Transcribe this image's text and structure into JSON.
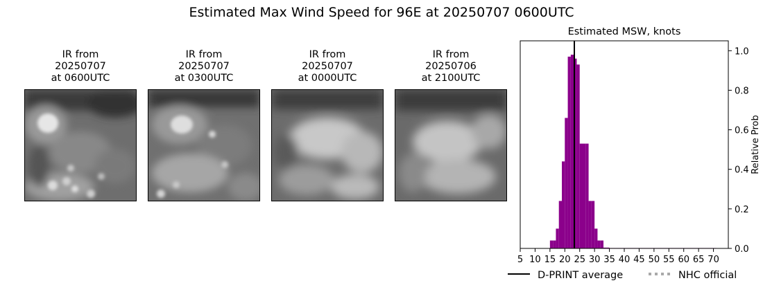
{
  "suptitle": "Estimated Max Wind Speed for 96E at 20250707 0600UTC",
  "ir_panels": [
    {
      "line1": "IR from",
      "line2": "20250707",
      "line3": "at 0600UTC"
    },
    {
      "line1": "IR from",
      "line2": "20250707",
      "line3": "at 0300UTC"
    },
    {
      "line1": "IR from",
      "line2": "20250707",
      "line3": "at 0000UTC"
    },
    {
      "line1": "IR from",
      "line2": "20250706",
      "line3": "at 2100UTC"
    }
  ],
  "chart_data": {
    "type": "bar",
    "title": "Estimated MSW, knots",
    "xlabel": "",
    "ylabel": "Relative Prob",
    "xlim": [
      5,
      75
    ],
    "ylim": [
      0,
      1.05
    ],
    "bin_width": 1,
    "bar_color": "#8b008b",
    "x_ticks": [
      5,
      10,
      15,
      20,
      25,
      30,
      35,
      40,
      45,
      50,
      55,
      60,
      65,
      70
    ],
    "y_ticks": [
      0.0,
      0.2,
      0.4,
      0.6,
      0.8,
      1.0
    ],
    "y_tick_labels": [
      "0.0",
      "0.2",
      "0.4",
      "0.6",
      "0.8",
      "1.0"
    ],
    "y_axis_side": "right",
    "bins": [
      15,
      16,
      17,
      18,
      19,
      20,
      21,
      22,
      23,
      24,
      25,
      26,
      27,
      28,
      29,
      30,
      31,
      32,
      33,
      34,
      35,
      36,
      37,
      38,
      39,
      40,
      41,
      42,
      43,
      44,
      45,
      46,
      47,
      48,
      49,
      50,
      51,
      52,
      53,
      54,
      55,
      56,
      57,
      58,
      59,
      60,
      61,
      62,
      63,
      64,
      65,
      66,
      67,
      68,
      69,
      70
    ],
    "values": [
      0.04,
      0.04,
      0.1,
      0.24,
      0.44,
      0.66,
      0.97,
      0.98,
      0.96,
      0.93,
      0.53,
      0.53,
      0.53,
      0.24,
      0.24,
      0.1,
      0.04,
      0.04,
      0.004,
      0.004,
      0.002,
      0.002,
      0.002,
      0.002,
      0.002,
      0.002,
      0.002,
      0.002,
      0.002,
      0.002,
      0.002,
      0.002,
      0.002,
      0.002,
      0.002,
      0.002,
      0.002,
      0.002,
      0.002,
      0.002,
      0.002,
      0.002,
      0.002,
      0.002,
      0.002,
      0.002,
      0.002,
      0.002,
      0.002,
      0.002,
      0.002,
      0.002,
      0.002,
      0.002,
      0.002,
      0.002
    ],
    "dprint_average": 23.2,
    "legend": {
      "placement": "lower-center",
      "items": [
        {
          "label": "D-PRINT average",
          "style": "solid",
          "color": "#000000"
        },
        {
          "label": "NHC official",
          "style": "dotted",
          "color": "#a9a9a9"
        }
      ]
    }
  }
}
